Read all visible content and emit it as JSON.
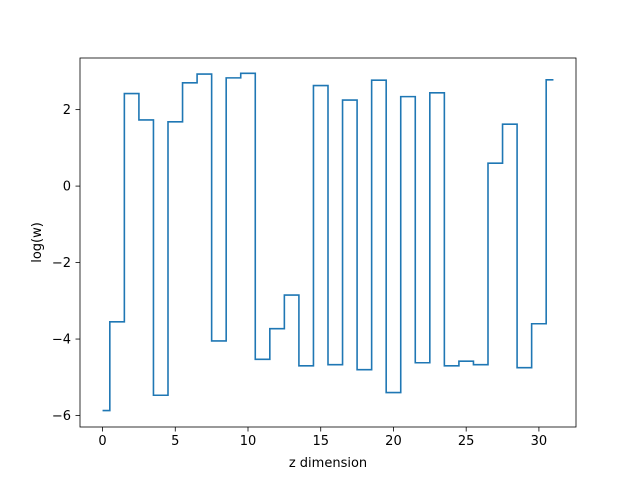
{
  "chart_data": {
    "type": "line",
    "drawstyle": "steps-mid",
    "title": "",
    "xlabel": "z dimension",
    "ylabel": "log(w)",
    "xlim": [
      -1.55,
      32.55
    ],
    "ylim": [
      -6.3,
      3.35
    ],
    "xticks": [
      0,
      5,
      10,
      15,
      20,
      25,
      30
    ],
    "yticks": [
      -6,
      -4,
      -2,
      0,
      2
    ],
    "ytick_labels": [
      "−6",
      "−4",
      "−2",
      "0",
      "2"
    ],
    "grid": false,
    "line_color": "#1f77b4",
    "series": [
      {
        "x": [
          0,
          1,
          2,
          3,
          4,
          5,
          6,
          7,
          8,
          9,
          10,
          11,
          12,
          13,
          14,
          15,
          16,
          17,
          18,
          19,
          20,
          21,
          22,
          23,
          24,
          25,
          26,
          27,
          28,
          29,
          30,
          31
        ],
        "values": [
          -5.87,
          -3.55,
          2.42,
          1.73,
          -5.47,
          1.68,
          2.7,
          2.93,
          -4.05,
          2.83,
          2.95,
          -4.53,
          -3.73,
          -2.85,
          -4.7,
          2.63,
          -4.67,
          2.25,
          -4.8,
          2.77,
          -5.4,
          2.34,
          -4.62,
          2.44,
          -4.7,
          -4.58,
          -4.67,
          0.6,
          1.62,
          -4.75,
          -3.6,
          2.78
        ]
      }
    ]
  }
}
